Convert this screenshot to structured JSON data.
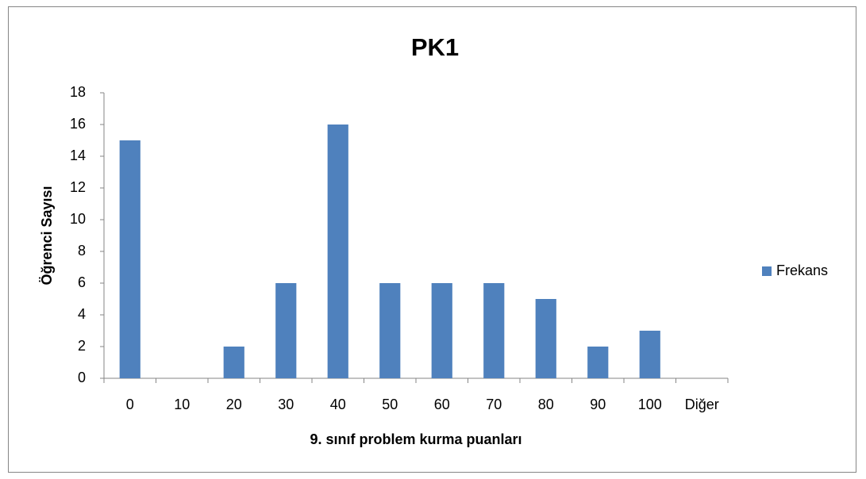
{
  "chart_data": {
    "type": "bar",
    "title": "PK1",
    "x_label": "9. sınıf problem kurma puanları",
    "y_label": "Öğrenci Sayısı",
    "categories": [
      "0",
      "10",
      "20",
      "30",
      "40",
      "50",
      "60",
      "70",
      "80",
      "90",
      "100",
      "Diğer"
    ],
    "series": [
      {
        "name": "Frekans",
        "color": "#4f81bd",
        "values": [
          15,
          0,
          2,
          6,
          16,
          6,
          6,
          6,
          5,
          2,
          3,
          0
        ]
      }
    ],
    "ylim": [
      0,
      18
    ],
    "yticks": [
      0,
      2,
      4,
      6,
      8,
      10,
      12,
      14,
      16,
      18
    ],
    "grid": false,
    "legend": "right"
  }
}
